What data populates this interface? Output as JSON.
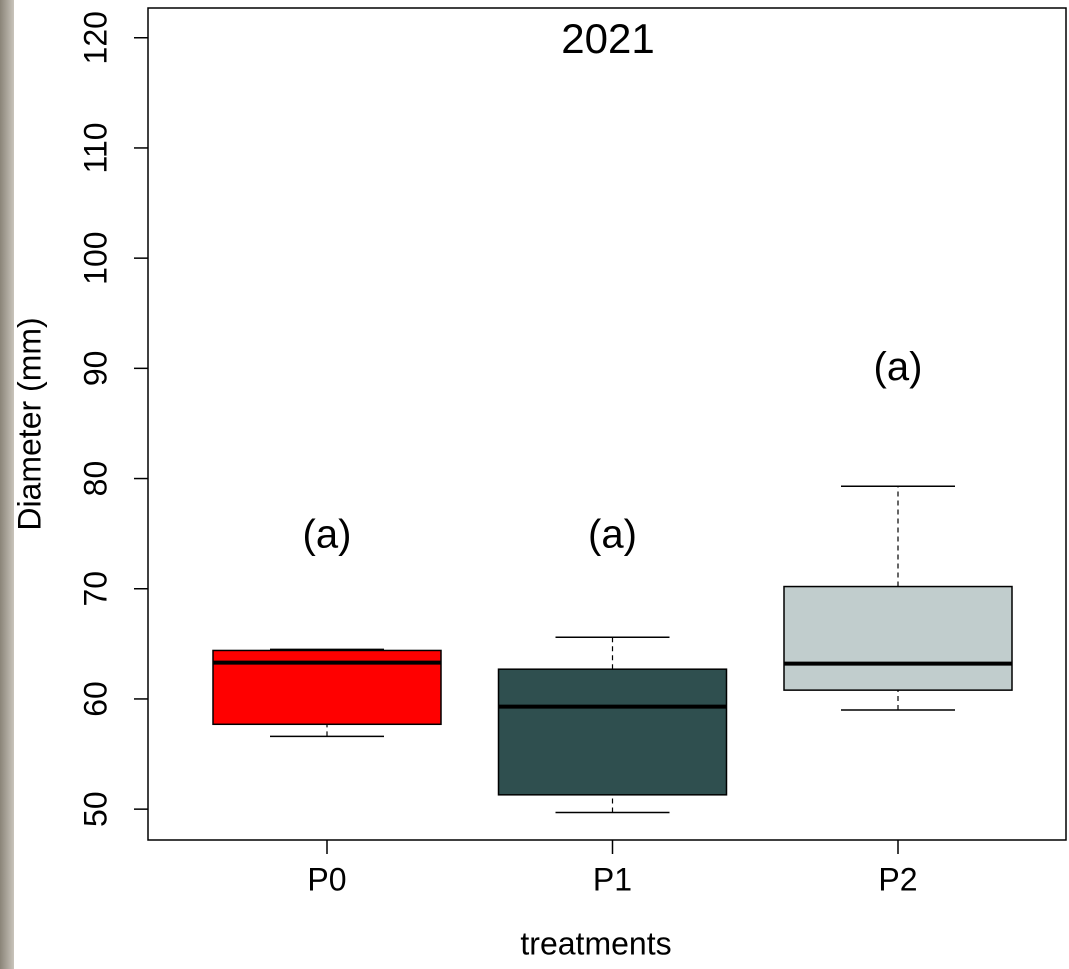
{
  "chart_data": {
    "type": "box",
    "title": "2021",
    "x_label": "treatments",
    "y_label": "Diameter (mm)",
    "categories": [
      "P0",
      "P1",
      "P2"
    ],
    "series": [
      {
        "name": "P0",
        "color": "#ff0000",
        "whisker_low": 56.6,
        "q1": 57.7,
        "median": 63.3,
        "q3": 64.4,
        "whisker_high": 64.5
      },
      {
        "name": "P1",
        "color": "#2f4f4f",
        "whisker_low": 49.7,
        "q1": 51.3,
        "median": 59.3,
        "q3": 62.7,
        "whisker_high": 65.6
      },
      {
        "name": "P2",
        "color": "#c1cdcd",
        "whisker_low": 59.0,
        "q1": 60.8,
        "median": 63.2,
        "q3": 70.2,
        "whisker_high": 79.3
      }
    ],
    "annotations": [
      {
        "text": "(a)",
        "category": "P0",
        "y": 74.7
      },
      {
        "text": "(a)",
        "category": "P1",
        "y": 74.7
      },
      {
        "text": "(a)",
        "category": "P2",
        "y": 89.9
      }
    ],
    "ylim": [
      47.2,
      122.7
    ],
    "yticks": [
      50,
      60,
      70,
      80,
      90,
      100,
      110,
      120
    ]
  }
}
